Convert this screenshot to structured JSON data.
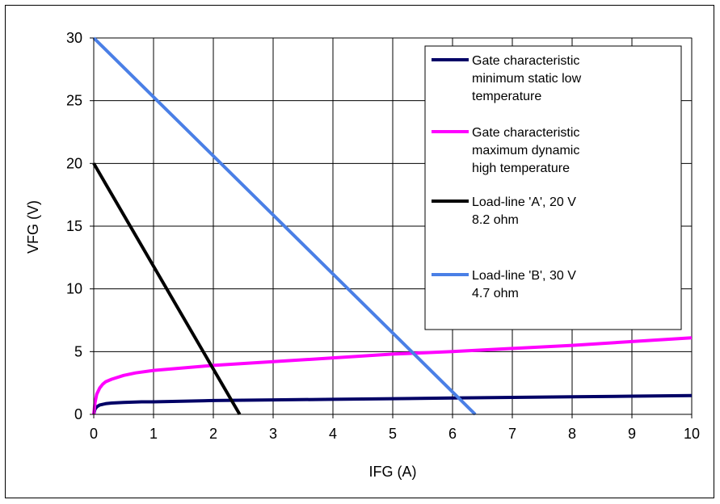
{
  "chart_data": {
    "type": "line",
    "xlabel": "IFG (A)",
    "ylabel": "VFG (V)",
    "xlim": [
      0,
      10
    ],
    "ylim": [
      0,
      30
    ],
    "xticks": [
      0,
      1,
      2,
      3,
      4,
      5,
      6,
      7,
      8,
      9,
      10
    ],
    "yticks": [
      0,
      5,
      10,
      15,
      20,
      25,
      30
    ],
    "grid": true,
    "legend_position": "top-right",
    "series": [
      {
        "name": "Gate characteristic minimum static low temperature",
        "legend_lines": [
          "Gate characteristic",
          "minimum static low",
          "temperature"
        ],
        "color": "#000066",
        "x": [
          0,
          0.02,
          0.05,
          0.1,
          0.2,
          0.3,
          0.5,
          0.8,
          1,
          2,
          3,
          4,
          5,
          6,
          7,
          8,
          9,
          10
        ],
        "y": [
          0,
          0.4,
          0.6,
          0.75,
          0.85,
          0.9,
          0.95,
          1.0,
          1.0,
          1.1,
          1.15,
          1.2,
          1.25,
          1.3,
          1.35,
          1.4,
          1.45,
          1.5
        ]
      },
      {
        "name": "Gate characteristic maximum dynamic high temperature",
        "legend_lines": [
          "Gate characteristic",
          "maximum dynamic",
          "high temperature"
        ],
        "color": "#ff00ff",
        "x": [
          0,
          0.02,
          0.05,
          0.1,
          0.15,
          0.2,
          0.3,
          0.5,
          0.7,
          1,
          1.5,
          2,
          3,
          4,
          5,
          6,
          7,
          8,
          9,
          10
        ],
        "y": [
          0,
          0.9,
          1.6,
          2.1,
          2.4,
          2.6,
          2.8,
          3.1,
          3.3,
          3.5,
          3.7,
          3.9,
          4.2,
          4.5,
          4.8,
          5.0,
          5.25,
          5.5,
          5.8,
          6.1
        ]
      },
      {
        "name": "Load-line 'A', 20 V 8.2 ohm",
        "legend_lines": [
          "Load-line 'A', 20 V",
          "8.2 ohm"
        ],
        "color": "#000000",
        "x": [
          0,
          2.44
        ],
        "y": [
          20,
          0
        ]
      },
      {
        "name": "Load-line 'B', 30 V 4.7 ohm",
        "legend_lines": [
          "Load-line 'B', 30 V",
          "4.7 ohm"
        ],
        "color": "#4a7fe6",
        "x": [
          0,
          6.38
        ],
        "y": [
          30,
          0
        ]
      }
    ]
  }
}
